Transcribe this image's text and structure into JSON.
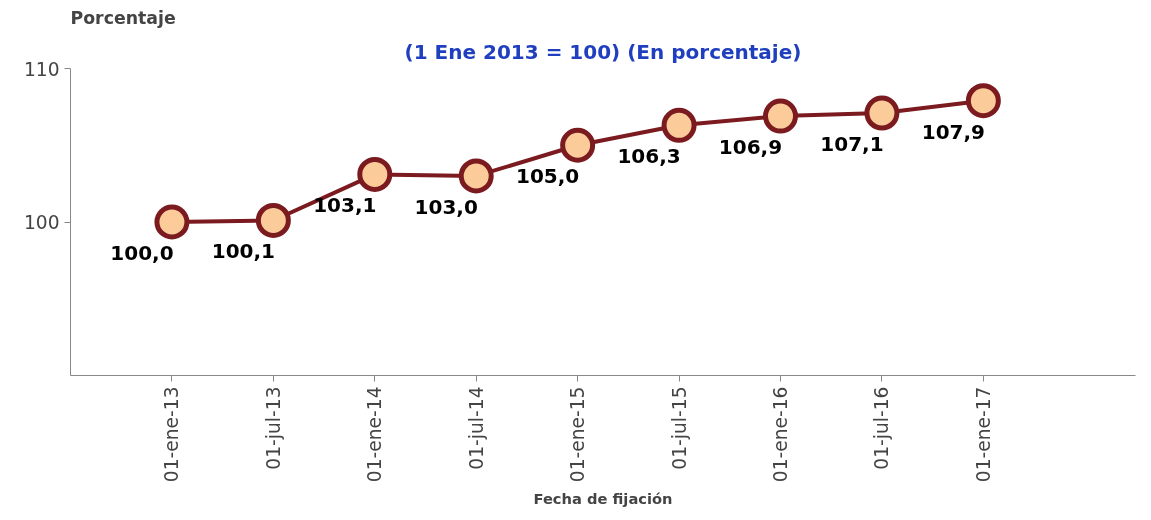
{
  "chart_data": {
    "type": "line",
    "title": "(1 Ene 2013 = 100) (En porcentaje)",
    "ylabel": "Porcentaje",
    "xlabel": "Fecha de fijación",
    "categories": [
      "01-ene-13",
      "01-jul-13",
      "01-ene-14",
      "01-jul-14",
      "01-ene-15",
      "01-jul-15",
      "01-ene-16",
      "01-jul-16",
      "01-ene-17"
    ],
    "series": [
      {
        "color": "#7b1a1f",
        "values": [
          100.0,
          100.1,
          103.1,
          103.0,
          105.0,
          106.3,
          106.9,
          107.1,
          107.9
        ],
        "value_labels": [
          "100,0",
          "100,1",
          "103,1",
          "103,0",
          "105,0",
          "106,3",
          "106,9",
          "107,1",
          "107,9"
        ]
      }
    ],
    "ylim": [
      90,
      110
    ],
    "yticks": [
      100,
      110
    ],
    "marker": "circle",
    "line_style": "solid",
    "grid": false
  }
}
